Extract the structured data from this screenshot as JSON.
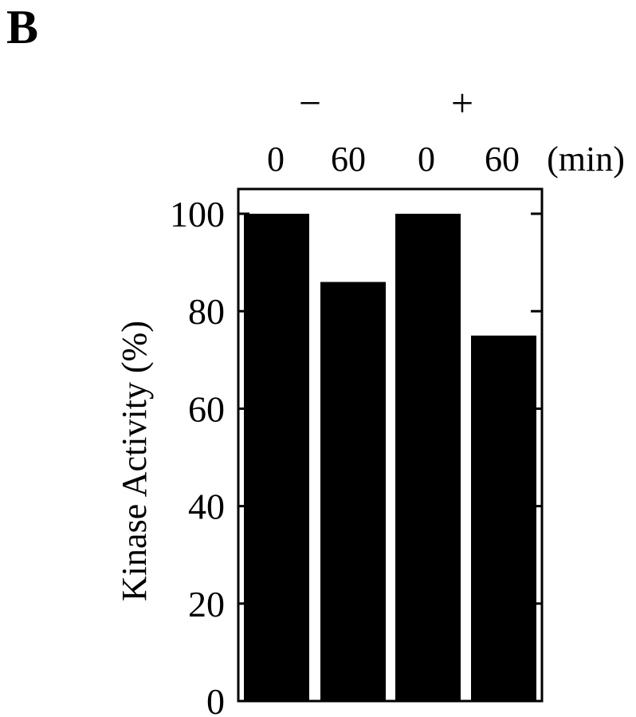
{
  "panel_label": "B",
  "chart_data": {
    "type": "bar",
    "categories": [
      "0",
      "60",
      "0",
      "60"
    ],
    "category_unit": "(min)",
    "groups": [
      {
        "label": "−",
        "categories": [
          "0",
          "60"
        ]
      },
      {
        "label": "+",
        "categories": [
          "0",
          "60"
        ]
      }
    ],
    "values": [
      100,
      86,
      100,
      75
    ],
    "title": "",
    "xlabel": "",
    "ylabel": "Kinase Activity (%)",
    "ylim": [
      0,
      100
    ],
    "yticks": [
      0,
      20,
      40,
      60,
      80,
      100
    ],
    "grid": false,
    "legend": "none",
    "bar_color": "#000000"
  }
}
